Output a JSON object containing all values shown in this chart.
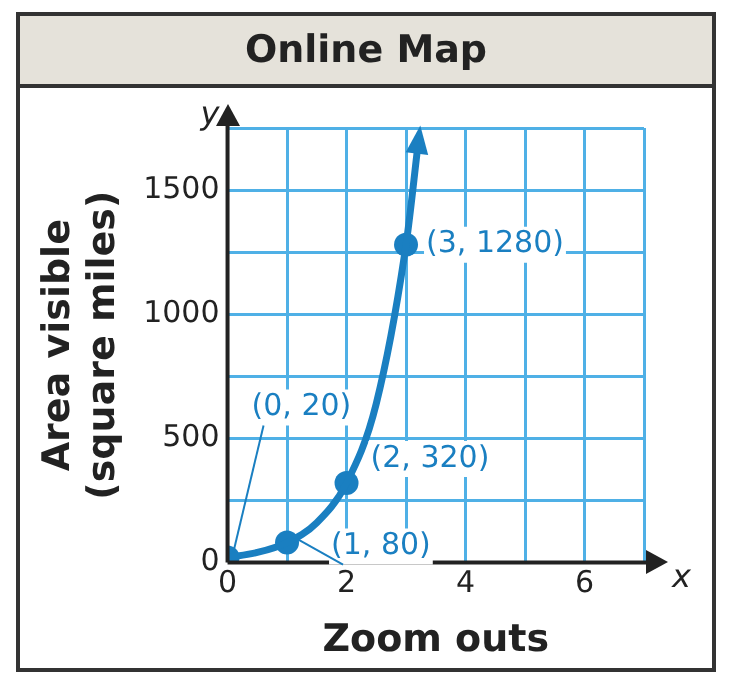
{
  "chart_data": {
    "type": "line",
    "title": "Online Map",
    "xlabel": "Zoom outs",
    "ylabel": "Area visible\n(square miles)",
    "series": [
      {
        "type": "line",
        "color": "#1a7fc1",
        "marker": "none",
        "x": [
          0,
          0.5,
          1,
          1.5,
          2,
          2.5,
          3,
          3.2
        ],
        "values": [
          20,
          40,
          80,
          160,
          320,
          640,
          1280,
          1680
        ]
      },
      {
        "type": "scatter",
        "color": "#1a7fc1",
        "marker": "circle",
        "x": [
          0,
          1,
          2,
          3
        ],
        "values": [
          20,
          80,
          320,
          1280
        ]
      }
    ],
    "xlim": [
      0,
      7
    ],
    "ylim": [
      0,
      1750
    ],
    "xticks": [
      0,
      {
        "value": 1,
        "label": null
      },
      2,
      {
        "value": 3,
        "label": null
      },
      4,
      {
        "value": 5,
        "label": null
      },
      6,
      {
        "value": 7,
        "label": null
      }
    ],
    "yticks": [
      0,
      {
        "value": 250,
        "label": null
      },
      500,
      {
        "value": 750,
        "label": null
      },
      1000,
      {
        "value": 1250,
        "label": null
      },
      1500,
      {
        "value": 1750,
        "label": null
      }
    ],
    "grid": true,
    "annotations": [
      {
        "text": "(0, 20)",
        "x": 0,
        "y": 20
      },
      {
        "text": "(1, 80)",
        "x": 1,
        "y": 80
      },
      {
        "text": "(2, 320)",
        "x": 2,
        "y": 320
      },
      {
        "text": "(3, 1280)",
        "x": 3,
        "y": 1280
      },
      "x",
      "y"
    ]
  }
}
